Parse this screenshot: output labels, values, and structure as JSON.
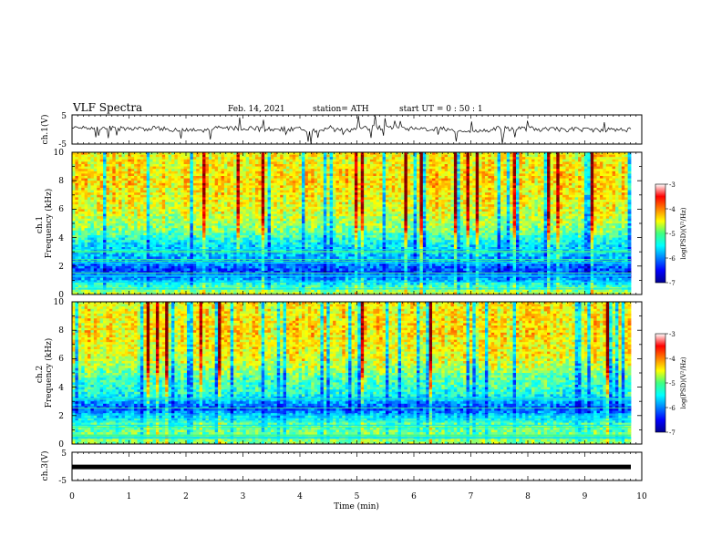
{
  "header": {
    "title": "VLF Spectra",
    "date": "Feb. 14, 2021",
    "station": "station= ATH",
    "start_ut": "start  UT =   0 : 50 : 1"
  },
  "chart_data": [
    {
      "type": "line",
      "panel": "ch1-waveform",
      "ylabel": "ch.1(V)",
      "ylim": [
        -5,
        5
      ],
      "yticks": [
        "5",
        "-5"
      ],
      "xlim": [
        0,
        10
      ],
      "series": [
        {
          "values": [
            0.5,
            0.3,
            -0.3,
            0.4,
            0.1,
            -0.2,
            0.6,
            0.2,
            -0.4,
            0.3,
            0.0,
            -0.1
          ]
        }
      ]
    },
    {
      "type": "heatmap",
      "panel": "ch1-spectrogram",
      "ylabel": "ch.1\nFrequency (kHz)",
      "ylim": [
        0,
        10
      ],
      "yticks": [
        "0",
        "2",
        "4",
        "6",
        "8",
        "10"
      ],
      "xlim": [
        0,
        10
      ],
      "colorbar": {
        "label": "log(PSD)(V²/Hz)",
        "range": [
          -7,
          -3
        ],
        "ticks": [
          "-3",
          "-4",
          "-5",
          "-6",
          "-7"
        ]
      },
      "mean_log_psd_by_freq_khz": [
        [
          0.5,
          -5.2
        ],
        [
          1.5,
          -6.3
        ],
        [
          2.5,
          -5.8
        ],
        [
          3.5,
          -5.6
        ],
        [
          4.5,
          -5.0
        ],
        [
          6,
          -4.6
        ],
        [
          8,
          -4.4
        ],
        [
          9.5,
          -4.5
        ]
      ]
    },
    {
      "type": "heatmap",
      "panel": "ch2-spectrogram",
      "ylabel": "ch.2\nFrequency (kHz)",
      "ylim": [
        0,
        10
      ],
      "yticks": [
        "0",
        "2",
        "4",
        "6",
        "8",
        "10"
      ],
      "xlim": [
        0,
        10
      ],
      "colorbar": {
        "label": "log(PSD)(V²/Hz)",
        "range": [
          -7,
          -3
        ],
        "ticks": [
          "-3",
          "-4",
          "-5",
          "-6",
          "-7"
        ]
      },
      "mean_log_psd_by_freq_khz": [
        [
          0.5,
          -5.0
        ],
        [
          1.5,
          -5.2
        ],
        [
          2.5,
          -6.2
        ],
        [
          3.5,
          -5.4
        ],
        [
          4.5,
          -5.2
        ],
        [
          6,
          -4.6
        ],
        [
          8,
          -4.4
        ],
        [
          9.5,
          -4.5
        ]
      ]
    },
    {
      "type": "line",
      "panel": "ch3-waveform",
      "ylabel": "ch.3(V)",
      "ylim": [
        -5,
        5
      ],
      "yticks": [
        "5",
        "-5"
      ],
      "xlim": [
        0,
        10
      ],
      "xlabel": "Time  (min)",
      "xticks": [
        "0",
        "1",
        "2",
        "3",
        "4",
        "5",
        "6",
        "7",
        "8",
        "9",
        "10"
      ],
      "series": [
        {
          "values": [
            -0.2,
            -0.2,
            -0.2,
            -0.2
          ]
        }
      ]
    }
  ]
}
